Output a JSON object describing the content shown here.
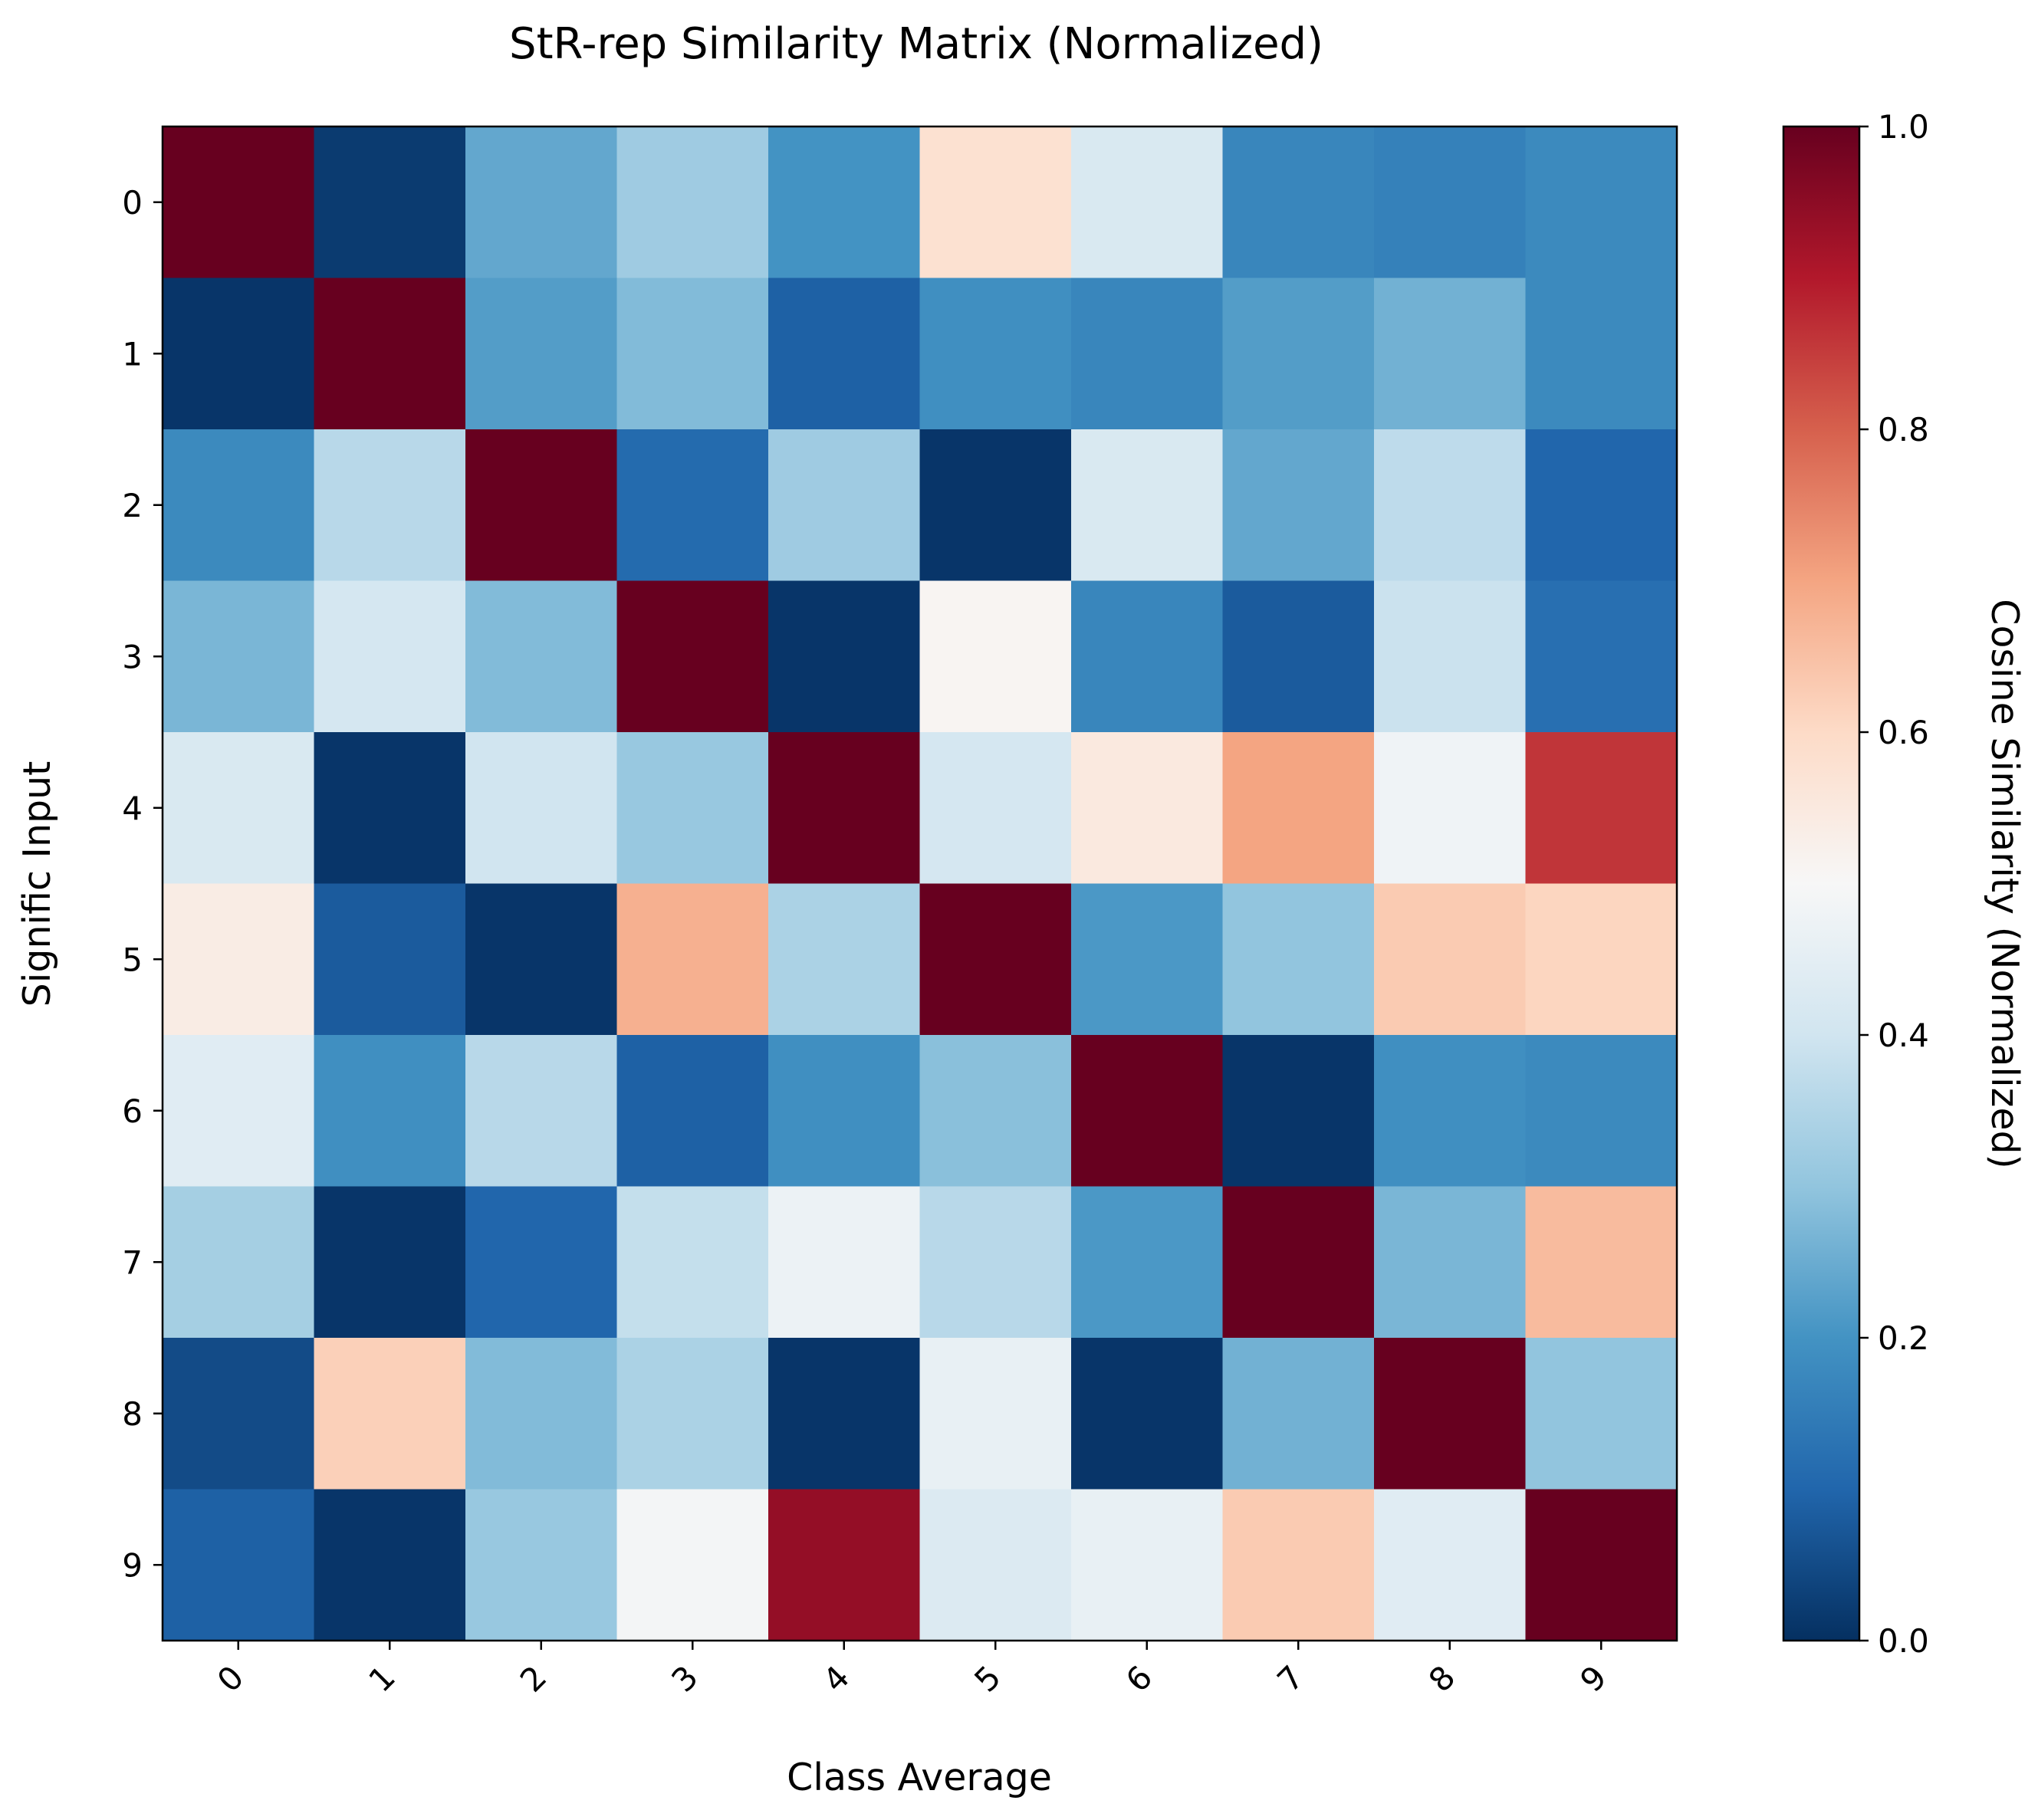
{
  "chart_data": {
    "type": "heatmap",
    "title": "StR-rep Similarity Matrix (Normalized)",
    "xlabel": "Class Average",
    "ylabel": "Signific Input",
    "x_categories": [
      "0",
      "1",
      "2",
      "3",
      "4",
      "5",
      "6",
      "7",
      "8",
      "9"
    ],
    "y_categories": [
      "0",
      "1",
      "2",
      "3",
      "4",
      "5",
      "6",
      "7",
      "8",
      "9"
    ],
    "values": [
      [
        1.0,
        0.02,
        0.24,
        0.32,
        0.2,
        0.58,
        0.42,
        0.17,
        0.16,
        0.18
      ],
      [
        0.01,
        1.0,
        0.22,
        0.28,
        0.09,
        0.19,
        0.17,
        0.22,
        0.26,
        0.18
      ],
      [
        0.18,
        0.36,
        1.0,
        0.11,
        0.32,
        0.01,
        0.42,
        0.24,
        0.37,
        0.1
      ],
      [
        0.27,
        0.41,
        0.28,
        1.0,
        0.01,
        0.51,
        0.17,
        0.08,
        0.39,
        0.12
      ],
      [
        0.42,
        0.01,
        0.4,
        0.31,
        1.0,
        0.41,
        0.55,
        0.7,
        0.48,
        0.86
      ],
      [
        0.54,
        0.08,
        0.01,
        0.68,
        0.34,
        1.0,
        0.21,
        0.3,
        0.63,
        0.61
      ],
      [
        0.44,
        0.19,
        0.36,
        0.09,
        0.19,
        0.29,
        1.0,
        0.01,
        0.19,
        0.18
      ],
      [
        0.33,
        0.01,
        0.1,
        0.38,
        0.47,
        0.36,
        0.21,
        1.0,
        0.27,
        0.66
      ],
      [
        0.05,
        0.62,
        0.28,
        0.34,
        0.01,
        0.46,
        0.01,
        0.26,
        1.0,
        0.3
      ],
      [
        0.09,
        0.01,
        0.31,
        0.49,
        0.94,
        0.43,
        0.46,
        0.63,
        0.44,
        1.0
      ]
    ],
    "colormap": "RdBu_r",
    "colorbar": {
      "label": "Cosine Similarity (Normalized)",
      "range": [
        0.0,
        1.0
      ],
      "ticks": [
        "0.0",
        "0.2",
        "0.4",
        "0.6",
        "0.8",
        "1.0"
      ]
    },
    "x_tick_rotation": "45deg",
    "grid": false,
    "legend": "none"
  }
}
